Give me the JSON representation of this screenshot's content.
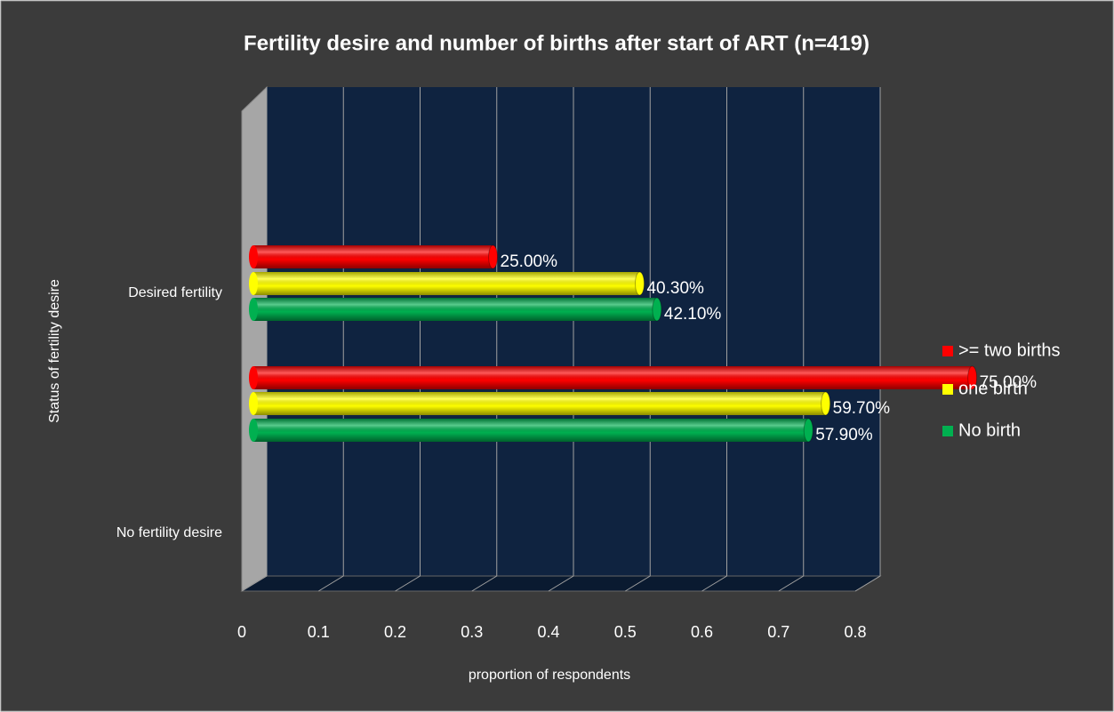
{
  "chart_data": {
    "type": "bar",
    "orientation": "horizontal",
    "title": "Fertility desire and number of births after start of ART (n=419)",
    "x_label": "proportion of respondents",
    "y_label": "Status of fertility desire",
    "categories": [
      "Desired fertility",
      "No fertility desire"
    ],
    "series": [
      {
        "name": ">= two births",
        "color": "#ff0000",
        "values": [
          0.25,
          0.75
        ],
        "value_labels": [
          "25.00%",
          "75.00%"
        ]
      },
      {
        "name": "one birth",
        "color": "#ffff00",
        "values": [
          0.403,
          0.597
        ],
        "value_labels": [
          "40.30%",
          "59.70%"
        ]
      },
      {
        "name": "No birth",
        "color": "#00b050",
        "values": [
          0.421,
          0.579
        ],
        "value_labels": [
          "42.10%",
          "57.90%"
        ]
      }
    ],
    "xlim": [
      0,
      0.8
    ],
    "xticks": [
      0,
      0.1,
      0.2,
      0.3,
      0.4,
      0.5,
      0.6,
      0.7,
      0.8
    ],
    "grid": true,
    "legend": "right"
  }
}
